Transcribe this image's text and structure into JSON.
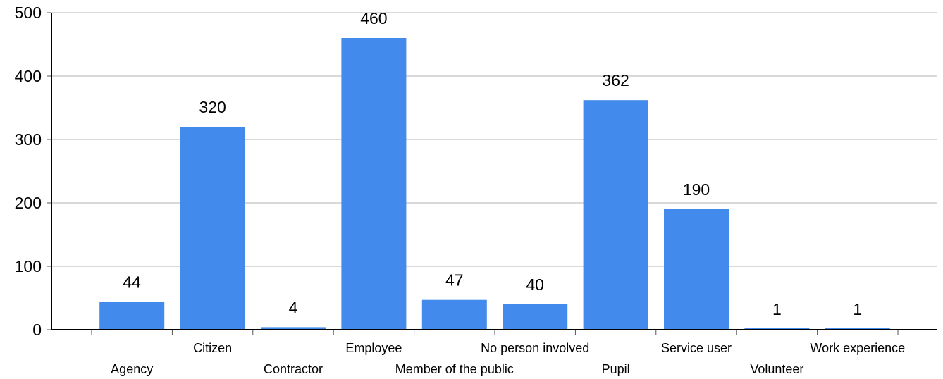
{
  "chart_data": {
    "type": "bar",
    "title": "",
    "xlabel": "",
    "ylabel": "",
    "categories": [
      "Agency",
      "Citizen",
      "Contractor",
      "Employee",
      "Member of the public",
      "No person involved",
      "Pupil",
      "Service user",
      "Volunteer",
      "Work experience"
    ],
    "values": [
      44,
      320,
      4,
      460,
      47,
      40,
      362,
      190,
      1,
      1
    ],
    "ylim": [
      0,
      500
    ],
    "yticks": [
      0,
      100,
      200,
      300,
      400,
      500
    ],
    "grid": true,
    "legend": "none",
    "show_data_labels": true,
    "bar_color": "#428bed",
    "gridline_color": "#d9d9d9"
  }
}
